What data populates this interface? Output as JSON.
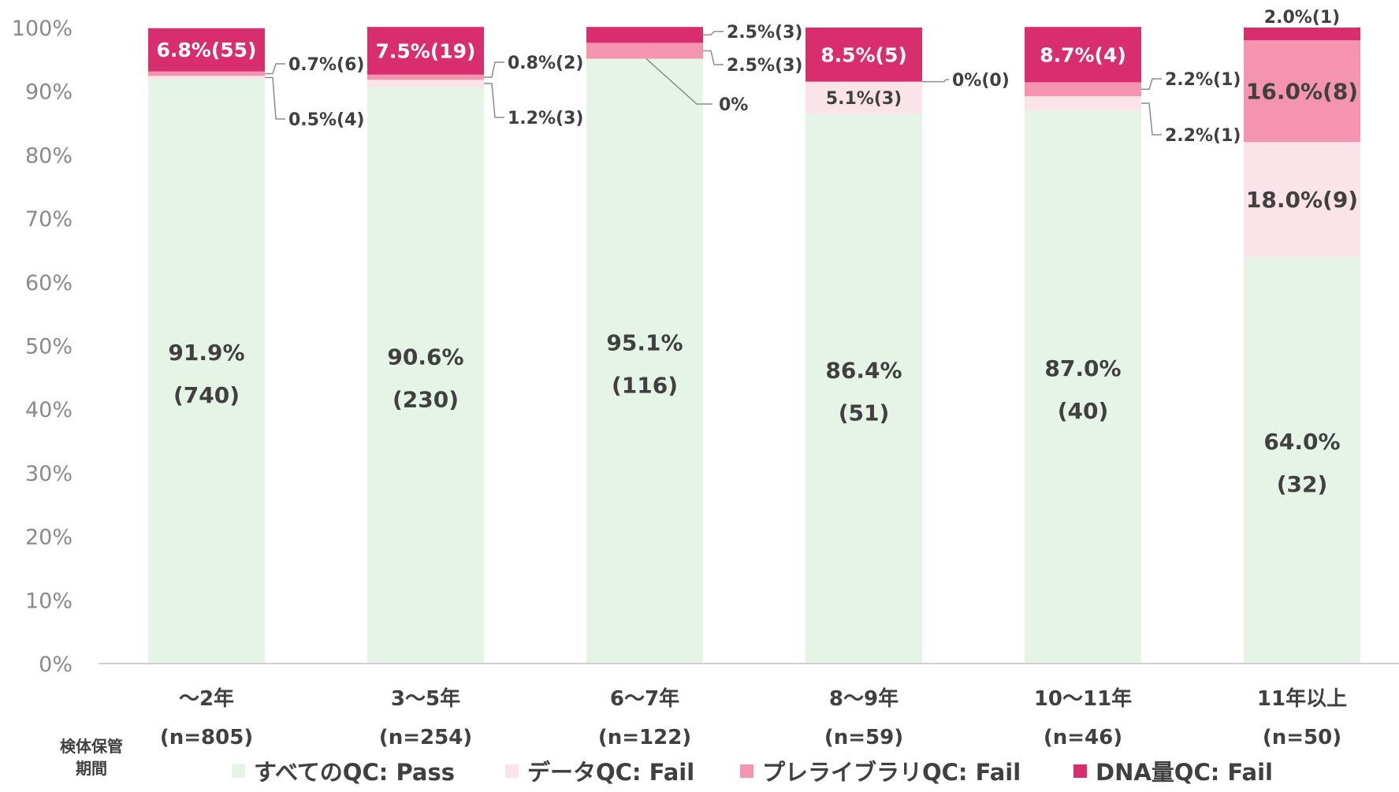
{
  "chart_data": {
    "type": "bar",
    "stacked": true,
    "xlabel": "検体保管期間",
    "x_title_lines": [
      "検体保管",
      "期間"
    ],
    "ylim": [
      0,
      100
    ],
    "yticks": [
      "0%",
      "10%",
      "20%",
      "30%",
      "40%",
      "50%",
      "60%",
      "70%",
      "80%",
      "90%",
      "100%"
    ],
    "grid": false,
    "legend_position": "bottom",
    "categories": [
      {
        "label": "～2年",
        "n": "(n=805)"
      },
      {
        "label": "3～5年",
        "n": "(n=254)"
      },
      {
        "label": "6～7年",
        "n": "(n=122)"
      },
      {
        "label": "8～9年",
        "n": "(n=59)"
      },
      {
        "label": "10～11年",
        "n": "(n=46)"
      },
      {
        "label": "11年以上",
        "n": "(n=50)"
      }
    ],
    "series": [
      {
        "name": "すべてのQC: Pass",
        "color": "#e6f4e7",
        "values": [
          91.9,
          90.6,
          95.1,
          86.4,
          87.0,
          64.0
        ],
        "labels": [
          [
            "91.9%",
            "(740)"
          ],
          [
            "90.6%",
            "(230)"
          ],
          [
            "95.1%",
            "(116)"
          ],
          [
            "86.4%",
            "(51)"
          ],
          [
            "87.0%",
            "(40)"
          ],
          [
            "64.0%",
            "(32)"
          ]
        ]
      },
      {
        "name": "データQC: Fail",
        "color": "#fbe3ea",
        "values": [
          0.5,
          1.2,
          0.0,
          5.1,
          2.2,
          18.0
        ],
        "labels": [
          "0.5%(4)",
          "1.2%(3)",
          "0%",
          "5.1%(3)",
          "2.2%(1)",
          "18.0%(9)"
        ]
      },
      {
        "name": "プレライブラリQC: Fail",
        "color": "#f494b1",
        "values": [
          0.7,
          0.8,
          2.5,
          0.0,
          2.2,
          16.0
        ],
        "labels": [
          "0.7%(6)",
          "0.8%(2)",
          "2.5%(3)",
          "0%(0)",
          "2.2%(1)",
          "16.0%(8)"
        ]
      },
      {
        "name": "DNA量QC: Fail",
        "color": "#d92e6e",
        "values": [
          6.8,
          7.5,
          2.5,
          8.5,
          8.7,
          2.0
        ],
        "labels": [
          "6.8%(55)",
          "7.5%(19)",
          "2.5%(3)",
          "8.5%(5)",
          "8.7%(4)",
          "2.0%(1)"
        ]
      }
    ]
  }
}
